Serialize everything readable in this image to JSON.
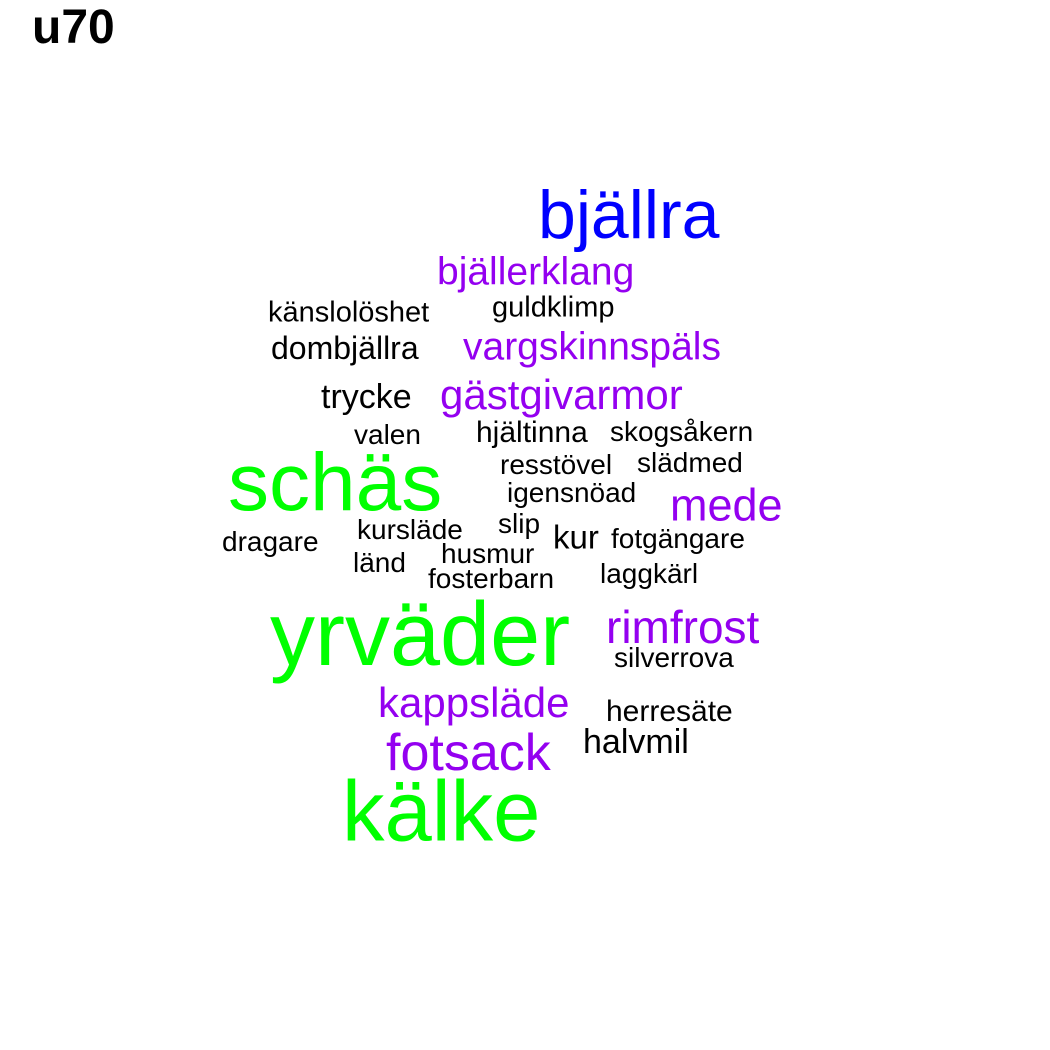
{
  "title": "u70",
  "colors": {
    "big": "#00ff00",
    "blue": "#0000ff",
    "purple": "#9400f0",
    "black": "#000000"
  },
  "words": [
    {
      "text": "bjällra",
      "color": "blue"
    },
    {
      "text": "bjällerklang",
      "color": "purple"
    },
    {
      "text": "känslolöshet",
      "color": "black"
    },
    {
      "text": "guldklimp",
      "color": "black"
    },
    {
      "text": "dombjällra",
      "color": "black"
    },
    {
      "text": "vargskinnspäls",
      "color": "purple"
    },
    {
      "text": "trycke",
      "color": "black"
    },
    {
      "text": "gästgivarmor",
      "color": "purple"
    },
    {
      "text": "valen",
      "color": "black"
    },
    {
      "text": "hjältinna",
      "color": "black"
    },
    {
      "text": "skogsåkern",
      "color": "black"
    },
    {
      "text": "schäs",
      "color": "big"
    },
    {
      "text": "resstövel",
      "color": "black"
    },
    {
      "text": "slädmed",
      "color": "black"
    },
    {
      "text": "igensnöad",
      "color": "black"
    },
    {
      "text": "mede",
      "color": "purple"
    },
    {
      "text": "dragare",
      "color": "black"
    },
    {
      "text": "kursläde",
      "color": "black"
    },
    {
      "text": "slip",
      "color": "black"
    },
    {
      "text": "kur",
      "color": "black"
    },
    {
      "text": "fotgängare",
      "color": "black"
    },
    {
      "text": "länd",
      "color": "black"
    },
    {
      "text": "husmur",
      "color": "black"
    },
    {
      "text": "fosterbarn",
      "color": "black"
    },
    {
      "text": "laggkärl",
      "color": "black"
    },
    {
      "text": "yrväder",
      "color": "big"
    },
    {
      "text": "rimfrost",
      "color": "purple"
    },
    {
      "text": "silverrova",
      "color": "black"
    },
    {
      "text": "kappsläde",
      "color": "purple"
    },
    {
      "text": "herresäte",
      "color": "black"
    },
    {
      "text": "fotsack",
      "color": "purple"
    },
    {
      "text": "halvmil",
      "color": "black"
    },
    {
      "text": "kälke",
      "color": "big"
    }
  ]
}
